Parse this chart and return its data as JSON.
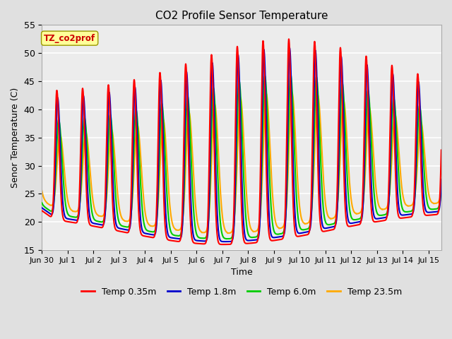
{
  "title": "CO2 Profile Sensor Temperature",
  "ylabel": "Senor Temperature (C)",
  "xlabel": "Time",
  "ylim": [
    15,
    55
  ],
  "legend_label": "TZ_co2prof",
  "series_labels": [
    "Temp 0.35m",
    "Temp 1.8m",
    "Temp 6.0m",
    "Temp 23.5m"
  ],
  "series_colors": [
    "#ff0000",
    "#0000cc",
    "#00cc00",
    "#ffaa00"
  ],
  "series_linewidths": [
    1.5,
    1.5,
    1.5,
    1.5
  ],
  "background_color": "#e0e0e0",
  "plot_bg_color": "#ececec",
  "grid_color": "#ffffff",
  "tick_days": [
    "Jun 30",
    "Jul 1",
    "Jul 2",
    "Jul 3",
    "Jul 4",
    "Jul 5",
    "Jul 6",
    "Jul 7",
    "Jul 8",
    "Jul 9",
    "Jul 10",
    "Jul 11",
    "Jul 12",
    "Jul 13",
    "Jul 14",
    "Jul 15"
  ]
}
